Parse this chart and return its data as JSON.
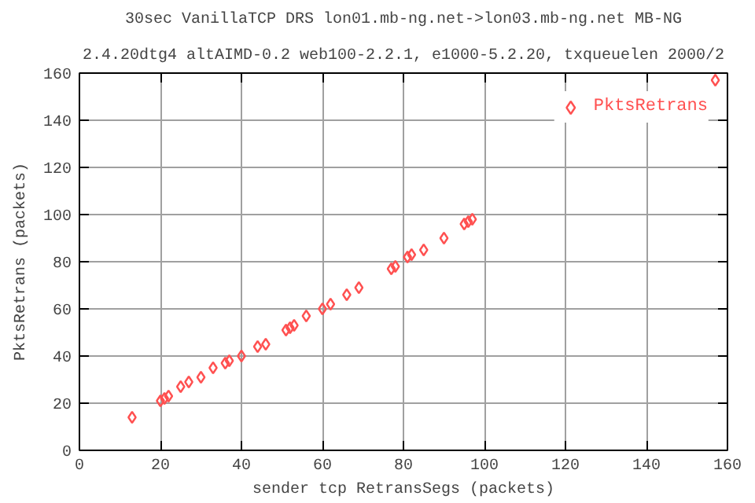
{
  "chart_data": {
    "type": "scatter",
    "title": "30sec VanillaTCP DRS lon01.mb-ng.net->lon03.mb-ng.net MB-NG",
    "subtitle": "2.4.20dtg4 altAIMD-0.2 web100-2.2.1, e1000-5.2.20, txqueuelen 2000/2",
    "xlabel": "sender tcp RetransSegs (packets)",
    "ylabel": "PktsRetrans (packets)",
    "xlim": [
      0,
      160
    ],
    "ylim": [
      0,
      160
    ],
    "xticks": [
      0,
      20,
      40,
      60,
      80,
      100,
      120,
      140,
      160
    ],
    "yticks": [
      0,
      20,
      40,
      60,
      80,
      100,
      120,
      140,
      160
    ],
    "grid": true,
    "legend": "top right",
    "marker": "diamond",
    "series": [
      {
        "name": "PktsRetrans",
        "color": "#ff5050",
        "x": [
          13,
          20,
          21,
          22,
          25,
          27,
          30,
          33,
          36,
          37,
          40,
          44,
          46,
          51,
          52,
          53,
          56,
          60,
          62,
          66,
          69,
          77,
          78,
          81,
          82,
          85,
          90,
          95,
          96,
          97,
          157
        ],
        "values": [
          14,
          21,
          22,
          23,
          27,
          29,
          31,
          35,
          37,
          38,
          40,
          44,
          45,
          51,
          52,
          53,
          57,
          60,
          62,
          66,
          69,
          77,
          78,
          82,
          83,
          85,
          90,
          96,
          97,
          98,
          157
        ]
      }
    ]
  }
}
